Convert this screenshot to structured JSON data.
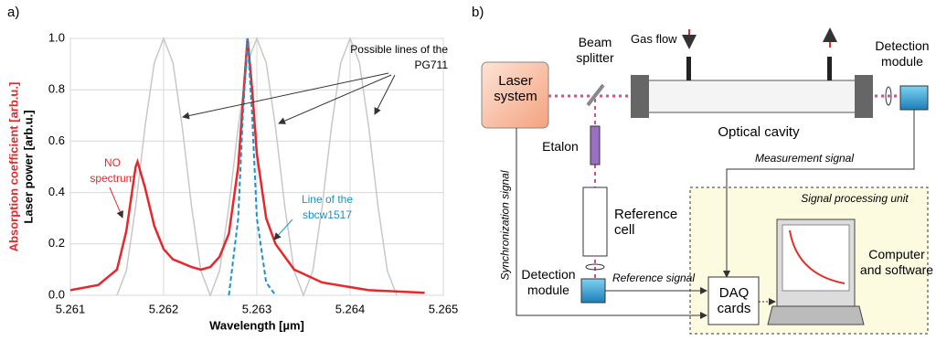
{
  "panel_labels": [
    "a)",
    "b)"
  ],
  "chart_data": {
    "type": "line",
    "xlabel": "Wavelength [µm]",
    "ylabel": "Laser power [arb.u.]",
    "ylabel_secondary": "Absorption coefficient [arb.u.]",
    "xlim": [
      5.261,
      5.265
    ],
    "xticks": [
      5.261,
      5.262,
      5.263,
      5.264,
      5.265
    ],
    "ylim": [
      0,
      1
    ],
    "yticks": [
      {
        "value": 0,
        "label": "0.0"
      },
      0.2,
      0.4,
      0.6,
      0.8,
      {
        "value": 1,
        "label": "1.0"
      }
    ],
    "grid": true,
    "series": [
      {
        "name": "Possible lines of the PG711",
        "color": "#c8c8c8",
        "dash": false,
        "x": [
          5.2615,
          5.2616,
          5.2617,
          5.2618,
          5.2619,
          5.262,
          5.2621,
          5.2622,
          5.2623,
          5.2624,
          5.2625,
          5.2626,
          5.2627,
          5.2628,
          5.2629,
          5.263,
          5.2631,
          5.2632,
          5.2633,
          5.2634,
          5.2635,
          5.2636,
          5.2637,
          5.2638,
          5.2639,
          5.264,
          5.2641,
          5.2642,
          5.2643,
          5.2644,
          5.2645
        ],
        "values": [
          0,
          0.095,
          0.345,
          0.655,
          0.905,
          1,
          0.905,
          0.655,
          0.345,
          0.095,
          0,
          0.095,
          0.345,
          0.655,
          0.905,
          1,
          0.905,
          0.655,
          0.345,
          0.095,
          0,
          0.095,
          0.345,
          0.655,
          0.905,
          1,
          0.905,
          0.655,
          0.345,
          0.095,
          0
        ]
      },
      {
        "name": "NO spectrum",
        "color": "#e8262b",
        "dash": false,
        "x": [
          5.261,
          5.2613,
          5.2615,
          5.2616,
          5.2617,
          5.26172,
          5.2618,
          5.2619,
          5.262,
          5.2621,
          5.2623,
          5.2624,
          5.2625,
          5.2626,
          5.2627,
          5.2628,
          5.26285,
          5.2629,
          5.26295,
          5.263,
          5.2631,
          5.2632,
          5.2634,
          5.2637,
          5.2642,
          5.2648
        ],
        "values": [
          0.02,
          0.04,
          0.1,
          0.25,
          0.5,
          0.52,
          0.42,
          0.27,
          0.18,
          0.14,
          0.11,
          0.1,
          0.11,
          0.15,
          0.24,
          0.5,
          0.75,
          1,
          0.8,
          0.55,
          0.3,
          0.2,
          0.1,
          0.05,
          0.02,
          0.01
        ]
      },
      {
        "name": "Line of the sbcw1517",
        "color": "#1f8fc4",
        "dash": true,
        "x": [
          5.2627,
          5.2628,
          5.26285,
          5.2629,
          5.26295,
          5.263,
          5.2631,
          5.2632
        ],
        "values": [
          0,
          0.3,
          0.7,
          1,
          0.7,
          0.3,
          0.05,
          0
        ]
      }
    ]
  },
  "diagram": {
    "laser": "Laser system",
    "beam_splitter": "Beam splitter",
    "gas_flow": "Gas flow",
    "detection_top": "Detection module",
    "cavity": "Optical cavity",
    "etalon": "Etalon",
    "measurement": "Measurement signal",
    "sync": "Synchronization signal",
    "spu": "Signal processing unit",
    "reference_cell": "Reference cell",
    "computer": "Computer and software",
    "detection_bottom": "Detection module",
    "reference_signal": "Reference signal",
    "daq": "DAQ cards"
  }
}
